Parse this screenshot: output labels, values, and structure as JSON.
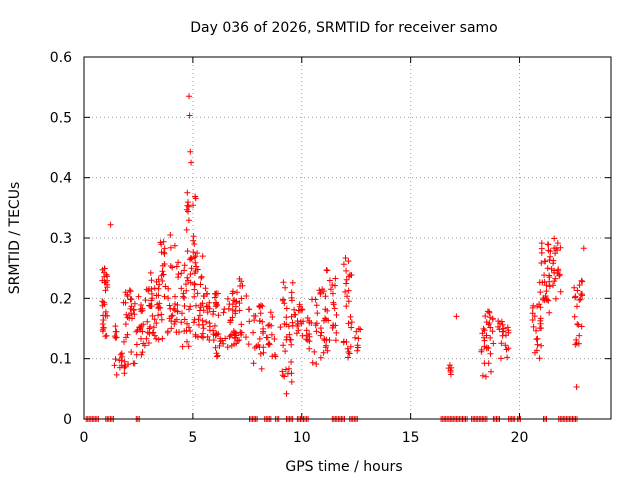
{
  "chart_data": {
    "type": "scatter",
    "title": "Day 036 of 2026, SRMTID for receiver samo",
    "xlabel": "GPS time / hours",
    "ylabel": "SRMTID / TECUs",
    "xlim": [
      0,
      24.2
    ],
    "ylim": [
      0,
      0.6
    ],
    "xticks": [
      0,
      5,
      10,
      15,
      20
    ],
    "xtick_labels": [
      "0",
      "5",
      "10",
      "15",
      "20"
    ],
    "yticks": [
      0,
      0.1,
      0.2,
      0.3,
      0.4,
      0.5,
      0.6
    ],
    "ytick_labels": [
      "0",
      "0.1",
      "0.2",
      "0.3",
      "0.4",
      "0.5",
      "0.6"
    ],
    "grid": true,
    "marker": "+",
    "color": "#ff0000",
    "series": [
      {
        "name": "SRMTID",
        "clusters": [
          {
            "x": [
              0.8,
              1.1
            ],
            "y": [
              0.13,
              0.25
            ],
            "n": 30
          },
          {
            "x": [
              1.3,
              1.5
            ],
            "y": [
              0.13,
              0.16
            ],
            "n": 6
          },
          {
            "x": [
              1.4,
              1.9
            ],
            "y": [
              0.07,
              0.11
            ],
            "n": 14
          },
          {
            "x": [
              1.8,
              2.4
            ],
            "y": [
              0.08,
              0.22
            ],
            "n": 30
          },
          {
            "x": [
              2.4,
              3.0
            ],
            "y": [
              0.1,
              0.22
            ],
            "n": 30
          },
          {
            "x": [
              3.0,
              3.6
            ],
            "y": [
              0.13,
              0.25
            ],
            "n": 36
          },
          {
            "x": [
              3.5,
              4.2
            ],
            "y": [
              0.13,
              0.31
            ],
            "n": 38
          },
          {
            "x": [
              4.2,
              4.9
            ],
            "y": [
              0.12,
              0.26
            ],
            "n": 36
          },
          {
            "x": [
              4.7,
              5.2
            ],
            "y": [
              0.24,
              0.38
            ],
            "n": 24
          },
          {
            "x": [
              5.0,
              5.5
            ],
            "y": [
              0.13,
              0.28
            ],
            "n": 30
          },
          {
            "x": [
              5.4,
              6.2
            ],
            "y": [
              0.13,
              0.22
            ],
            "n": 34
          },
          {
            "x": [
              6.0,
              7.0
            ],
            "y": [
              0.1,
              0.21
            ],
            "n": 40
          },
          {
            "x": [
              6.8,
              7.6
            ],
            "y": [
              0.12,
              0.24
            ],
            "n": 30
          },
          {
            "x": [
              7.7,
              8.2
            ],
            "y": [
              0.08,
              0.19
            ],
            "n": 20
          },
          {
            "x": [
              8.2,
              8.8
            ],
            "y": [
              0.1,
              0.18
            ],
            "n": 20
          },
          {
            "x": [
              9.0,
              9.6
            ],
            "y": [
              0.06,
              0.23
            ],
            "n": 30
          },
          {
            "x": [
              9.4,
              10.1
            ],
            "y": [
              0.13,
              0.19
            ],
            "n": 24
          },
          {
            "x": [
              10.2,
              11.2
            ],
            "y": [
              0.09,
              0.22
            ],
            "n": 40
          },
          {
            "x": [
              11.0,
              11.6
            ],
            "y": [
              0.13,
              0.25
            ],
            "n": 24
          },
          {
            "x": [
              11.9,
              12.3
            ],
            "y": [
              0.08,
              0.27
            ],
            "n": 26
          },
          {
            "x": [
              12.4,
              12.7
            ],
            "y": [
              0.11,
              0.15
            ],
            "n": 8
          },
          {
            "x": [
              16.7,
              16.9
            ],
            "y": [
              0.07,
              0.09
            ],
            "n": 6
          },
          {
            "x": [
              18.2,
              18.8
            ],
            "y": [
              0.06,
              0.18
            ],
            "n": 32
          },
          {
            "x": [
              18.9,
              19.5
            ],
            "y": [
              0.1,
              0.17
            ],
            "n": 20
          },
          {
            "x": [
              20.6,
              21.0
            ],
            "y": [
              0.1,
              0.2
            ],
            "n": 22
          },
          {
            "x": [
              20.9,
              21.4
            ],
            "y": [
              0.17,
              0.3
            ],
            "n": 30
          },
          {
            "x": [
              21.4,
              21.9
            ],
            "y": [
              0.19,
              0.3
            ],
            "n": 24
          },
          {
            "x": [
              22.5,
              22.9
            ],
            "y": [
              0.12,
              0.23
            ],
            "n": 22
          }
        ],
        "points": [
          {
            "x": 1.22,
            "y": 0.322
          },
          {
            "x": 4.82,
            "y": 0.535
          },
          {
            "x": 4.85,
            "y": 0.503
          },
          {
            "x": 4.88,
            "y": 0.443
          },
          {
            "x": 4.92,
            "y": 0.425
          },
          {
            "x": 9.3,
            "y": 0.042
          },
          {
            "x": 17.1,
            "y": 0.17
          },
          {
            "x": 22.62,
            "y": 0.053
          },
          {
            "x": 22.95,
            "y": 0.283
          }
        ],
        "zero_ranges": [
          [
            0.1,
            0.7
          ],
          [
            1.0,
            1.4
          ],
          [
            2.4,
            2.6
          ],
          [
            7.6,
            8.0
          ],
          [
            8.3,
            8.6
          ],
          [
            8.8,
            9.0
          ],
          [
            9.3,
            9.6
          ],
          [
            9.8,
            10.3
          ],
          [
            11.4,
            12.0
          ],
          [
            12.2,
            12.6
          ],
          [
            16.4,
            17.6
          ],
          [
            17.8,
            18.5
          ],
          [
            18.8,
            19.1
          ],
          [
            19.5,
            19.8
          ],
          [
            19.9,
            20.1
          ],
          [
            21.1,
            21.3
          ],
          [
            21.8,
            22.7
          ]
        ]
      }
    ]
  }
}
